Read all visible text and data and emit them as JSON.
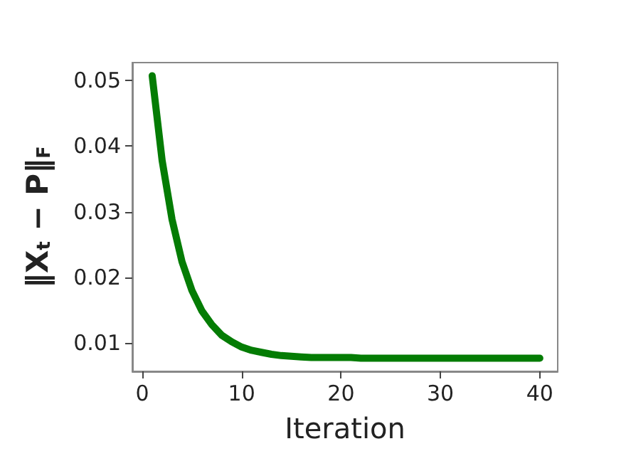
{
  "chart_data": {
    "type": "line",
    "xlabel": "Iteration",
    "ylabel": "‖X$_{t}$ − P‖$_{F}$",
    "x": [
      1,
      2,
      3,
      4,
      5,
      6,
      7,
      8,
      9,
      10,
      11,
      12,
      13,
      14,
      15,
      16,
      17,
      18,
      19,
      20,
      21,
      22,
      23,
      24,
      25,
      26,
      27,
      28,
      29,
      30,
      31,
      32,
      33,
      34,
      35,
      36,
      37,
      38,
      39,
      40
    ],
    "series": [
      {
        "color": "#047c04",
        "values": [
          0.0507,
          0.0378,
          0.0288,
          0.0224,
          0.018,
          0.0149,
          0.0128,
          0.0112,
          0.0102,
          0.0094,
          0.0089,
          0.0086,
          0.0083,
          0.0081,
          0.008,
          0.0079,
          0.0078,
          0.0078,
          0.0078,
          0.0078,
          0.0078,
          0.0077,
          0.0077,
          0.0077,
          0.0077,
          0.0077,
          0.0077,
          0.0077,
          0.0077,
          0.0077,
          0.0077,
          0.0077,
          0.0077,
          0.0077,
          0.0077,
          0.0077,
          0.0077,
          0.0077,
          0.0077,
          0.0077
        ]
      }
    ],
    "xlim": [
      -1,
      41.8
    ],
    "ylim": [
      0.0057,
      0.0527
    ],
    "xticks": [
      0,
      10,
      20,
      30,
      40
    ],
    "yticks": [
      0.01,
      0.02,
      0.03,
      0.04,
      0.05
    ],
    "grid": false,
    "marker": "none",
    "line_style": "solid"
  }
}
